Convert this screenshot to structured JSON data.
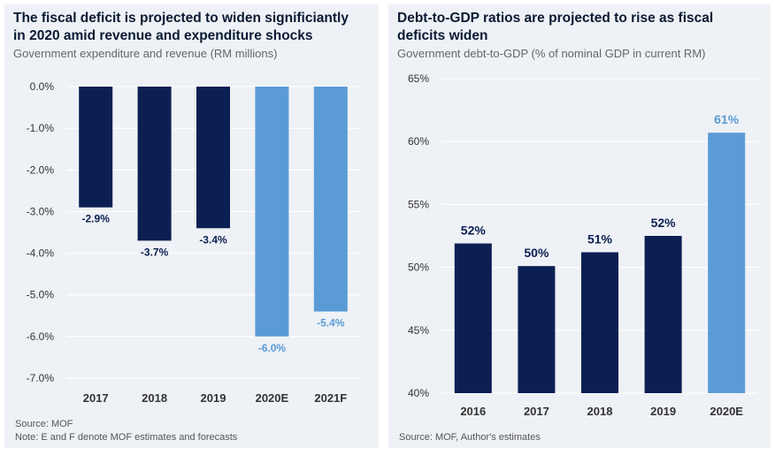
{
  "colors": {
    "dark": "#0b1f52",
    "light": "#5b9bd5",
    "grid": "#ffffff",
    "tick": "#333333"
  },
  "left": {
    "title_line1": "The fiscal deficit is projected to widen significiantly",
    "title_line2": "in 2020 amid revenue and expenditure shocks",
    "subtitle": "Government expenditure and revenue (RM millions)",
    "source": "Source: MOF",
    "note": "Note: E and F denote MOF estimates and forecasts"
  },
  "right": {
    "title_line1": "Debt-to-GDP ratios are projected to rise as fiscal",
    "title_line2": "deficits widen",
    "subtitle": "Government debt-to-GDP (% of nominal GDP in current RM)",
    "source": "Source: MOF, Author's estimates"
  },
  "chart_data": [
    {
      "type": "bar",
      "title": "The fiscal deficit is projected to widen significiantly in 2020 amid revenue and expenditure shocks",
      "subtitle": "Government expenditure and revenue (RM millions)",
      "categories": [
        "2017",
        "2018",
        "2019",
        "2020E",
        "2021F"
      ],
      "values": [
        -2.9,
        -3.7,
        -3.4,
        -6.0,
        -5.4
      ],
      "data_labels": [
        "-2.9%",
        "-3.7%",
        "-3.4%",
        "-6.0%",
        "-5.4%"
      ],
      "bar_colors": [
        "dark",
        "dark",
        "dark",
        "light",
        "light"
      ],
      "ylim": [
        -7.0,
        0.0
      ],
      "yticks": [
        0,
        -1,
        -2,
        -3,
        -4,
        -5,
        -6,
        -7
      ],
      "ytick_labels": [
        "0.0%",
        "-1.0%",
        "-2.0%",
        "-3.0%",
        "-4.0%",
        "-5.0%",
        "-6.0%",
        "-7.0%"
      ],
      "grid": true
    },
    {
      "type": "bar",
      "title": "Debt-to-GDP ratios are projected to rise as fiscal deficits widen",
      "subtitle": "Government debt-to-GDP (% of nominal GDP in current RM)",
      "categories": [
        "2016",
        "2017",
        "2018",
        "2019",
        "2020E"
      ],
      "values": [
        51.9,
        50.1,
        51.2,
        52.5,
        60.7
      ],
      "data_labels": [
        "52%",
        "50%",
        "51%",
        "52%",
        "61%"
      ],
      "bar_colors": [
        "dark",
        "dark",
        "dark",
        "dark",
        "light"
      ],
      "ylim": [
        40,
        65
      ],
      "yticks": [
        40,
        45,
        50,
        55,
        60,
        65
      ],
      "ytick_labels": [
        "40%",
        "45%",
        "50%",
        "55%",
        "60%",
        "65%"
      ],
      "grid": true
    }
  ]
}
